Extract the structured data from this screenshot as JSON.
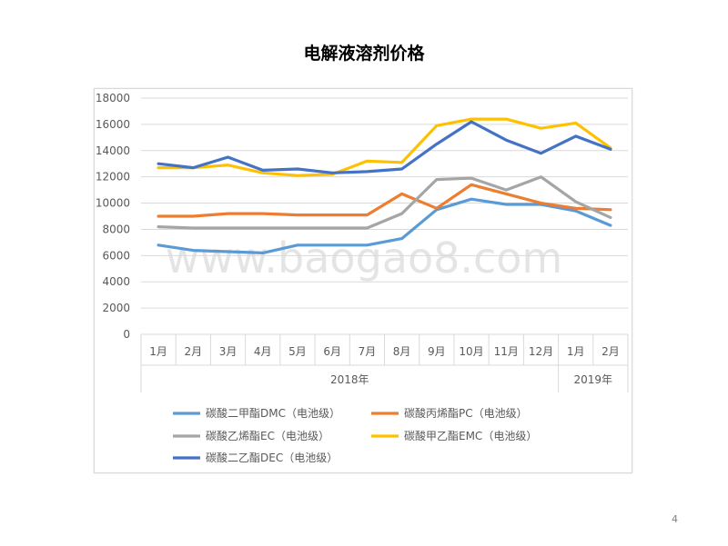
{
  "page": {
    "number": "4",
    "watermark": "www.baogao8.com"
  },
  "chart_data": {
    "type": "line",
    "title": "电解液溶剂价格",
    "categories": [
      "1月",
      "2月",
      "3月",
      "4月",
      "5月",
      "6月",
      "7月",
      "8月",
      "9月",
      "10月",
      "11月",
      "12月",
      "1月",
      "2月"
    ],
    "year_groups": [
      {
        "label": "2018年",
        "count": 12
      },
      {
        "label": "2019年",
        "count": 2
      }
    ],
    "ylim": [
      0,
      18000
    ],
    "yticks": [
      0,
      2000,
      4000,
      6000,
      8000,
      10000,
      12000,
      14000,
      16000,
      18000
    ],
    "grid": true,
    "legend_position": "bottom",
    "series": [
      {
        "name": "碳酸二甲酯DMC（电池级）",
        "color": "#5B9BD5",
        "values": [
          6800,
          6400,
          6300,
          6200,
          6800,
          6800,
          6800,
          7300,
          9500,
          10300,
          9900,
          9900,
          9400,
          8300
        ]
      },
      {
        "name": "碳酸丙烯酯PC（电池级）",
        "color": "#ED7D31",
        "values": [
          9000,
          9000,
          9200,
          9200,
          9100,
          9100,
          9100,
          10700,
          9600,
          11400,
          10700,
          10000,
          9600,
          9500
        ]
      },
      {
        "name": "碳酸乙烯酯EC（电池级）",
        "color": "#A5A5A5",
        "values": [
          8200,
          8100,
          8100,
          8100,
          8100,
          8100,
          8100,
          9200,
          11800,
          11900,
          11000,
          12000,
          10100,
          8900
        ]
      },
      {
        "name": "碳酸甲乙酯EMC（电池级）",
        "color": "#FFC000",
        "values": [
          12700,
          12700,
          12900,
          12300,
          12100,
          12200,
          13200,
          13100,
          15900,
          16400,
          16400,
          15700,
          16100,
          14200
        ]
      },
      {
        "name": "碳酸二乙酯DEC（电池级）",
        "color": "#4472C4",
        "values": [
          13000,
          12700,
          13500,
          12500,
          12600,
          12300,
          12400,
          12600,
          14500,
          16200,
          14800,
          13800,
          15100,
          14100
        ]
      }
    ]
  }
}
